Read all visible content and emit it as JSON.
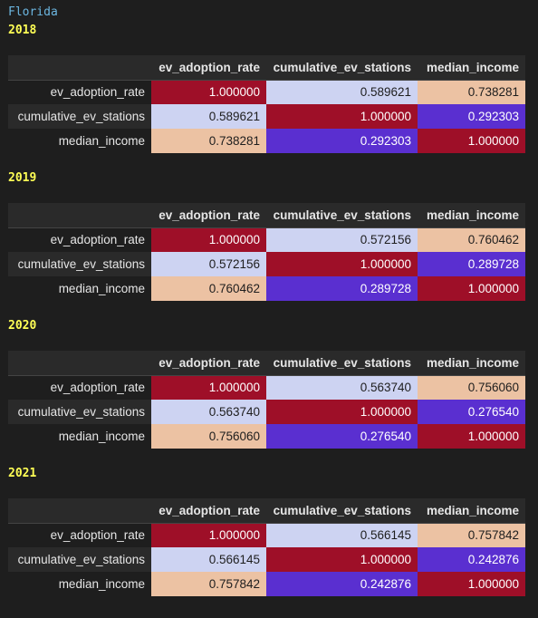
{
  "state": "Florida",
  "columns": [
    "ev_adoption_rate",
    "cumulative_ev_stations",
    "median_income"
  ],
  "colors": {
    "one": "#9e0f28",
    "low": "#5a2fd0",
    "mid_light": "#cdd3f2",
    "high_light": "#ecc2a3"
  },
  "years": [
    {
      "label": "2018",
      "rows": [
        {
          "name": "ev_adoption_rate",
          "values": [
            "1.000000",
            "0.589621",
            "0.738281"
          ]
        },
        {
          "name": "cumulative_ev_stations",
          "values": [
            "0.589621",
            "1.000000",
            "0.292303"
          ]
        },
        {
          "name": "median_income",
          "values": [
            "0.738281",
            "0.292303",
            "1.000000"
          ]
        }
      ]
    },
    {
      "label": "2019",
      "rows": [
        {
          "name": "ev_adoption_rate",
          "values": [
            "1.000000",
            "0.572156",
            "0.760462"
          ]
        },
        {
          "name": "cumulative_ev_stations",
          "values": [
            "0.572156",
            "1.000000",
            "0.289728"
          ]
        },
        {
          "name": "median_income",
          "values": [
            "0.760462",
            "0.289728",
            "1.000000"
          ]
        }
      ]
    },
    {
      "label": "2020",
      "rows": [
        {
          "name": "ev_adoption_rate",
          "values": [
            "1.000000",
            "0.563740",
            "0.756060"
          ]
        },
        {
          "name": "cumulative_ev_stations",
          "values": [
            "0.563740",
            "1.000000",
            "0.276540"
          ]
        },
        {
          "name": "median_income",
          "values": [
            "0.756060",
            "0.276540",
            "1.000000"
          ]
        }
      ]
    },
    {
      "label": "2021",
      "rows": [
        {
          "name": "ev_adoption_rate",
          "values": [
            "1.000000",
            "0.566145",
            "0.757842"
          ]
        },
        {
          "name": "cumulative_ev_stations",
          "values": [
            "0.566145",
            "1.000000",
            "0.242876"
          ]
        },
        {
          "name": "median_income",
          "values": [
            "0.757842",
            "0.242876",
            "1.000000"
          ]
        }
      ]
    }
  ]
}
